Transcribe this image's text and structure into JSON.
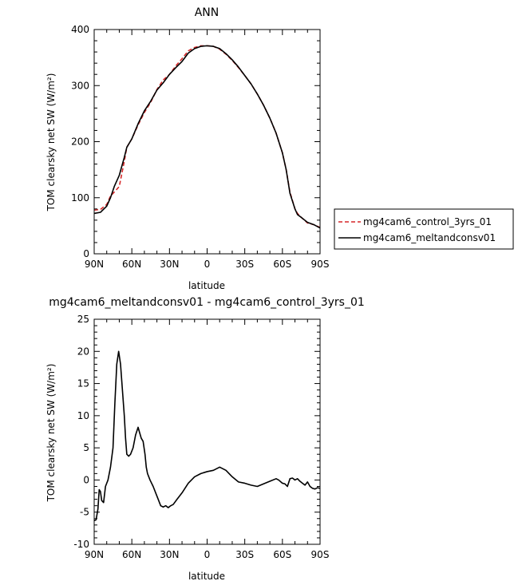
{
  "colors": {
    "control": "#d62728",
    "melt": "#000000",
    "axis": "#000000"
  },
  "chart_data": [
    {
      "type": "line",
      "title": "ANN",
      "xlabel": "latitude",
      "ylabel": "TOM clearsky net SW (W/m²)",
      "xlim": [
        90,
        -90
      ],
      "ylim": [
        0,
        400
      ],
      "x_ticks": [
        {
          "value": 90,
          "label": "90N"
        },
        {
          "value": 60,
          "label": "60N"
        },
        {
          "value": 30,
          "label": "30N"
        },
        {
          "value": 0,
          "label": "0"
        },
        {
          "value": -30,
          "label": "30S"
        },
        {
          "value": -60,
          "label": "60S"
        },
        {
          "value": -90,
          "label": "90S"
        }
      ],
      "y_ticks": [
        {
          "value": 0,
          "label": "0"
        },
        {
          "value": 100,
          "label": "100"
        },
        {
          "value": 200,
          "label": "200"
        },
        {
          "value": 300,
          "label": "300"
        },
        {
          "value": 400,
          "label": "400"
        }
      ],
      "legend": "right",
      "series": [
        {
          "name": "mg4cam6_control_3yrs_01",
          "style": "dashed",
          "color": "#d62728",
          "x": [
            90,
            85,
            80,
            77,
            74,
            70,
            66,
            64,
            60,
            55,
            50,
            45,
            40,
            35,
            30,
            25,
            20,
            15,
            10,
            5,
            0,
            -5,
            -10,
            -15,
            -20,
            -25,
            -30,
            -35,
            -40,
            -45,
            -50,
            -55,
            -60,
            -63,
            -66,
            -70,
            -72,
            -75,
            -80,
            -85,
            -90
          ],
          "y": [
            78,
            79,
            88,
            103,
            110,
            120,
            165,
            190,
            205,
            230,
            252,
            270,
            293,
            310,
            320,
            335,
            348,
            362,
            368,
            371,
            371,
            370,
            365,
            356,
            345,
            332,
            318,
            303,
            285,
            265,
            242,
            215,
            180,
            150,
            110,
            80,
            72,
            65,
            55,
            52,
            47
          ]
        },
        {
          "name": "mg4cam6_meltandconsv01",
          "style": "solid",
          "color": "#000000",
          "x": [
            90,
            85,
            80,
            77,
            74,
            70,
            66,
            64,
            60,
            55,
            50,
            45,
            40,
            35,
            30,
            25,
            20,
            15,
            10,
            5,
            0,
            -5,
            -10,
            -15,
            -20,
            -25,
            -30,
            -35,
            -40,
            -45,
            -50,
            -55,
            -60,
            -63,
            -66,
            -70,
            -72,
            -75,
            -80,
            -85,
            -90
          ],
          "y": [
            72,
            74,
            85,
            100,
            120,
            140,
            172,
            190,
            205,
            232,
            255,
            272,
            292,
            305,
            320,
            332,
            343,
            358,
            366,
            370,
            371,
            370,
            366,
            357,
            346,
            333,
            318,
            303,
            285,
            265,
            242,
            215,
            180,
            150,
            108,
            80,
            70,
            65,
            56,
            52,
            46
          ]
        }
      ]
    },
    {
      "type": "line",
      "title": "mg4cam6_meltandconsv01 - mg4cam6_control_3yrs_01",
      "xlabel": "latitude",
      "ylabel": "TOM clearsky net SW (W/m²)",
      "xlim": [
        90,
        -90
      ],
      "ylim": [
        -10,
        25
      ],
      "x_ticks": [
        {
          "value": 90,
          "label": "90N"
        },
        {
          "value": 60,
          "label": "60N"
        },
        {
          "value": 30,
          "label": "30N"
        },
        {
          "value": 0,
          "label": "0"
        },
        {
          "value": -30,
          "label": "30S"
        },
        {
          "value": -60,
          "label": "60S"
        },
        {
          "value": -90,
          "label": "90S"
        }
      ],
      "y_ticks": [
        {
          "value": -10,
          "label": "-10"
        },
        {
          "value": -5,
          "label": "-5"
        },
        {
          "value": 0,
          "label": "0"
        },
        {
          "value": 5,
          "label": "5"
        },
        {
          "value": 10,
          "label": "10"
        },
        {
          "value": 15,
          "label": "15"
        },
        {
          "value": 20,
          "label": "20"
        },
        {
          "value": 25,
          "label": "25"
        }
      ],
      "series": [
        {
          "color": "#000000",
          "style": "solid",
          "x": [
            90,
            88.5,
            87,
            86,
            85,
            84,
            82.5,
            81,
            79,
            77,
            75,
            73.5,
            72,
            70.5,
            69,
            67.5,
            66,
            65,
            64,
            62.5,
            61,
            59,
            57,
            55,
            54,
            52.5,
            51,
            49.5,
            48.5,
            47.5,
            45.5,
            43,
            41,
            39,
            37,
            35,
            33,
            31,
            29,
            27,
            24,
            20,
            15,
            10,
            5,
            0,
            -5,
            -10,
            -15,
            -20,
            -25,
            -30,
            -35,
            -40,
            -45,
            -50,
            -55,
            -57,
            -60,
            -62,
            -64,
            -66,
            -68,
            -70,
            -72,
            -74,
            -76,
            -78,
            -80,
            -82,
            -84,
            -86,
            -88,
            -90
          ],
          "y": [
            -6.3,
            -6.2,
            -4.5,
            -1.5,
            -1.8,
            -3.2,
            -3.5,
            -1.0,
            0.0,
            2.0,
            5.0,
            12.0,
            18.0,
            20.0,
            18.0,
            14.0,
            10.0,
            6.5,
            4.0,
            3.7,
            4.0,
            5.0,
            7.0,
            8.2,
            7.5,
            6.5,
            6.0,
            4.0,
            2.0,
            1.0,
            0.0,
            -1.0,
            -2.0,
            -3.0,
            -4.0,
            -4.2,
            -4.0,
            -4.3,
            -4.0,
            -3.8,
            -3.0,
            -2.0,
            -0.5,
            0.5,
            1.0,
            1.3,
            1.5,
            2.0,
            1.5,
            0.5,
            -0.3,
            -0.5,
            -0.8,
            -1.0,
            -0.6,
            -0.2,
            0.2,
            0.0,
            -0.5,
            -0.6,
            -1.0,
            0.2,
            0.3,
            0.0,
            0.2,
            -0.2,
            -0.5,
            -0.8,
            -0.3,
            -1.0,
            -1.3,
            -1.4,
            -1.2,
            -1.3
          ]
        }
      ]
    }
  ]
}
